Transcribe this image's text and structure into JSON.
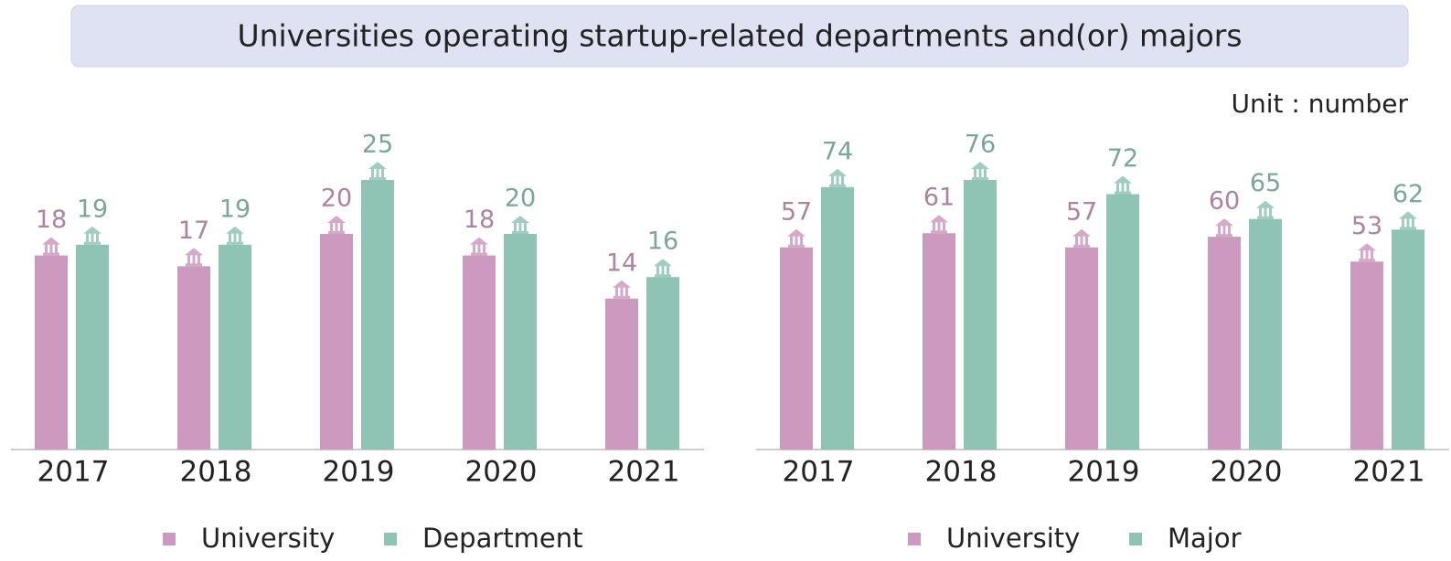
{
  "title": "Universities operating startup-related departments and(or) majors",
  "unit": "Unit : number",
  "chart_data": [
    {
      "type": "bar",
      "categories": [
        "2017",
        "2018",
        "2019",
        "2020",
        "2021"
      ],
      "series": [
        {
          "name": "University",
          "color": "#cc9abf",
          "values": [
            18,
            17,
            20,
            18,
            14
          ]
        },
        {
          "name": "Department",
          "color": "#8fc4b5",
          "values": [
            19,
            19,
            25,
            20,
            16
          ]
        }
      ]
    },
    {
      "type": "bar",
      "categories": [
        "2017",
        "2018",
        "2019",
        "2020",
        "2021"
      ],
      "series": [
        {
          "name": "University",
          "color": "#cc9abf",
          "values": [
            57,
            61,
            57,
            60,
            53
          ]
        },
        {
          "name": "Major",
          "color": "#8fc4b5",
          "values": [
            74,
            76,
            72,
            65,
            62
          ]
        }
      ]
    }
  ]
}
